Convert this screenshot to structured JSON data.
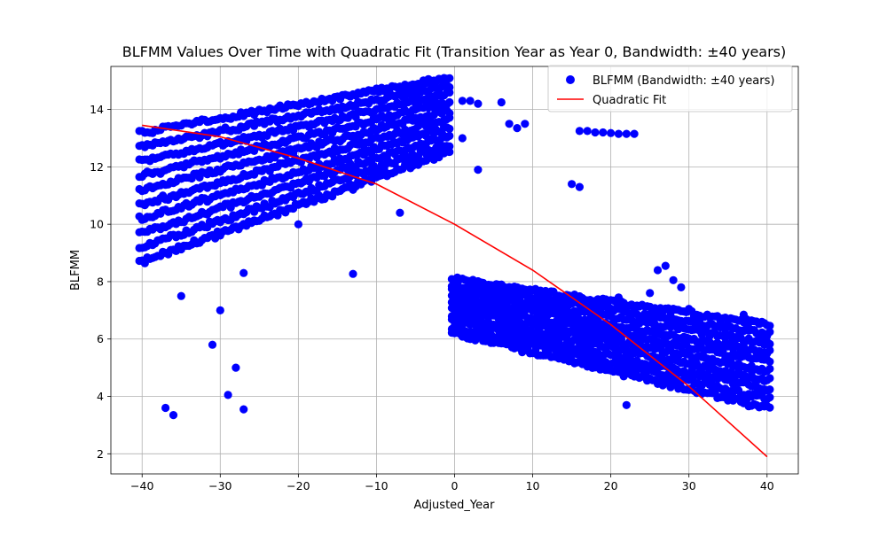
{
  "chart_data": {
    "type": "scatter",
    "title": "BLFMM Values Over Time with Quadratic Fit (Transition Year as Year 0, Bandwidth: ±40 years)",
    "xlabel": "Adjusted_Year",
    "ylabel": "BLFMM",
    "xlim": [
      -44,
      44
    ],
    "ylim": [
      1.3,
      15.5
    ],
    "xticks": [
      -40,
      -30,
      -20,
      -10,
      0,
      10,
      20,
      30,
      40
    ],
    "yticks": [
      2,
      4,
      6,
      8,
      10,
      12,
      14
    ],
    "grid": true,
    "legend_position": "top-right",
    "series": [
      {
        "name": "BLFMM (Bandwidth: ±40 years)",
        "kind": "scatter",
        "color": "#0000ff",
        "bands": [
          {
            "x_start": -40,
            "x_end": -1,
            "y_low_start": 8.7,
            "y_low_end": 12.5,
            "y_high_start": 13.2,
            "y_high_end": 15.1
          },
          {
            "x_start": 0,
            "x_end": 40,
            "y_low_start": 6.2,
            "y_low_end": 3.6,
            "y_high_start": 8.1,
            "y_high_end": 6.5
          }
        ],
        "outliers": [
          [
            -37,
            3.6
          ],
          [
            -36,
            3.35
          ],
          [
            -35,
            7.5
          ],
          [
            -31,
            5.8
          ],
          [
            -30,
            7.0
          ],
          [
            -29,
            4.05
          ],
          [
            -28,
            5.0
          ],
          [
            -27,
            8.3
          ],
          [
            -27,
            3.55
          ],
          [
            -20,
            10.0
          ],
          [
            -13,
            8.27
          ],
          [
            -13,
            11.2
          ],
          [
            -12,
            11.4
          ],
          [
            -7,
            10.4
          ],
          [
            -9,
            11.9
          ],
          [
            1,
            14.3
          ],
          [
            2,
            14.3
          ],
          [
            3,
            14.2
          ],
          [
            1,
            13.0
          ],
          [
            3,
            11.9
          ],
          [
            6,
            14.25
          ],
          [
            7,
            13.5
          ],
          [
            8,
            13.35
          ],
          [
            9,
            13.5
          ],
          [
            15,
            11.4
          ],
          [
            16,
            11.3
          ],
          [
            16,
            13.25
          ],
          [
            17,
            13.25
          ],
          [
            18,
            13.2
          ],
          [
            19,
            13.2
          ],
          [
            20,
            13.18
          ],
          [
            21,
            13.15
          ],
          [
            22,
            13.15
          ],
          [
            23,
            13.15
          ],
          [
            21,
            7.45
          ],
          [
            25,
            7.6
          ],
          [
            26,
            8.4
          ],
          [
            27,
            8.55
          ],
          [
            28,
            8.05
          ],
          [
            29,
            7.8
          ],
          [
            30,
            7.05
          ],
          [
            22,
            3.7
          ],
          [
            35,
            6.7
          ],
          [
            37,
            6.85
          ]
        ]
      },
      {
        "name": "Quadratic Fit",
        "kind": "line",
        "color": "#ff0000",
        "x": [
          -40,
          -30,
          -20,
          -10,
          0,
          10,
          20,
          30,
          40
        ],
        "y": [
          13.45,
          13.05,
          12.3,
          11.4,
          10.0,
          8.4,
          6.5,
          4.35,
          1.9
        ]
      }
    ]
  }
}
